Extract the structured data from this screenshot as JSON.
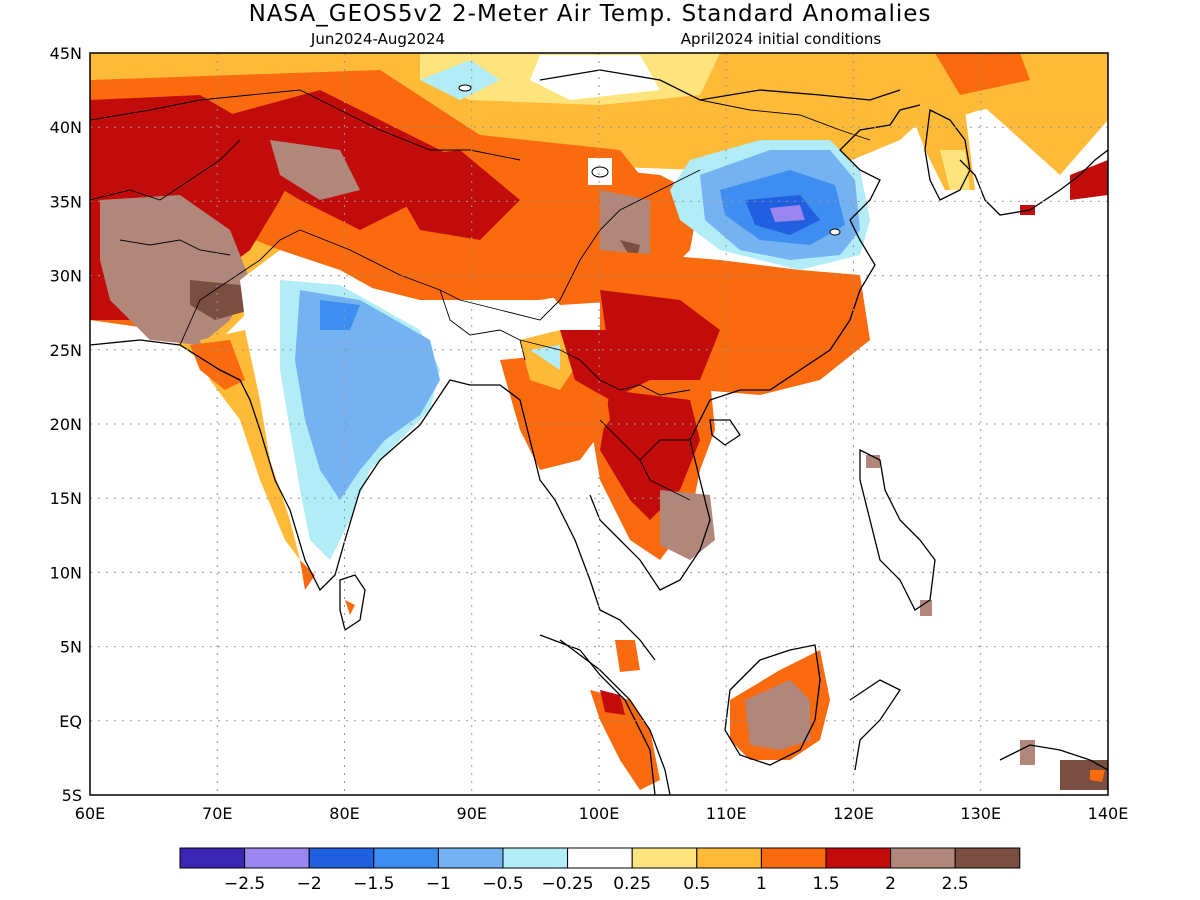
{
  "title": "NASA_GEOS5v2 2-Meter Air Temp. Standard Anomalies",
  "subtitle_left": "Jun2024-Aug2024",
  "subtitle_right": "April2024 initial conditions",
  "map": {
    "lon_range": [
      60,
      140
    ],
    "lat_range": [
      -5,
      45
    ],
    "gridlines": "dotted",
    "lon_ticks": [
      {
        "value": 60,
        "label": "60E"
      },
      {
        "value": 70,
        "label": "70E"
      },
      {
        "value": 80,
        "label": "80E"
      },
      {
        "value": 90,
        "label": "90E"
      },
      {
        "value": 100,
        "label": "100E"
      },
      {
        "value": 110,
        "label": "110E"
      },
      {
        "value": 120,
        "label": "120E"
      },
      {
        "value": 130,
        "label": "130E"
      },
      {
        "value": 140,
        "label": "140E"
      }
    ],
    "lat_ticks": [
      {
        "value": 45,
        "label": "45N"
      },
      {
        "value": 40,
        "label": "40N"
      },
      {
        "value": 35,
        "label": "35N"
      },
      {
        "value": 30,
        "label": "30N"
      },
      {
        "value": 25,
        "label": "25N"
      },
      {
        "value": 20,
        "label": "20N"
      },
      {
        "value": 15,
        "label": "15N"
      },
      {
        "value": 10,
        "label": "10N"
      },
      {
        "value": 5,
        "label": "5N"
      },
      {
        "value": 0,
        "label": "EQ"
      },
      {
        "value": -5,
        "label": "5S"
      }
    ],
    "colors": {
      "below_-2.5": "#3a25b5",
      "-2.5_-2": "#9b86f0",
      "-2_-1.5": "#1f5fe0",
      "-1.5_-1": "#3d8ef0",
      "-1_-0.5": "#74b2f2",
      "-0.5_-0.25": "#b1ecf7",
      "-0.25_0.25": "#ffffff",
      "0.25_0.5": "#ffe47e",
      "0.5_1": "#ffbb38",
      "1_1.5": "#fa6a0e",
      "1.5_2": "#c20c0c",
      "2_2.5": "#b0877a",
      "above_2.5": "#7a4e41"
    }
  },
  "colorbar": {
    "colors": [
      "#3a25b5",
      "#9b86f0",
      "#1f5fe0",
      "#3d8ef0",
      "#74b2f2",
      "#b1ecf7",
      "#ffffff",
      "#ffe47e",
      "#ffbb38",
      "#fa6a0e",
      "#c20c0c",
      "#b0877a",
      "#7a4e41"
    ],
    "labels": [
      "-2.5",
      "-2",
      "-1.5",
      "-1",
      "-0.5",
      "-0.25",
      "0.25",
      "0.5",
      "1",
      "1.5",
      "2",
      "2.5"
    ]
  }
}
